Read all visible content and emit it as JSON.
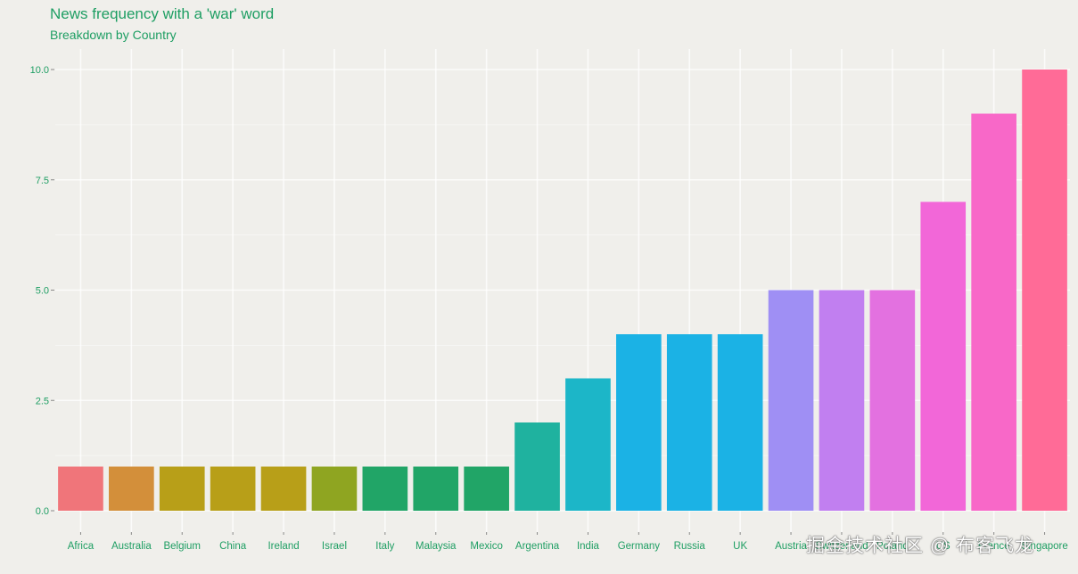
{
  "chart_data": {
    "type": "bar",
    "title": "News frequency with a 'war' word",
    "subtitle": "Breakdown by Country",
    "xlabel": "",
    "ylabel": "",
    "ylim": [
      0,
      10
    ],
    "yticks": [
      0,
      2.5,
      5,
      7.5,
      10
    ],
    "ytick_labels": [
      "0.0",
      "2.5",
      "5.0",
      "7.5",
      "10.0"
    ],
    "grid": true,
    "legend": "none",
    "categories": [
      "Africa",
      "Australia",
      "Belgium",
      "China",
      "Ireland",
      "Israel",
      "Italy",
      "Malaysia",
      "Mexico",
      "Argentina",
      "India",
      "Germany",
      "Russia",
      "UK",
      "Austria",
      "Switzerland",
      "Poland",
      "US",
      "France",
      "Singapore"
    ],
    "values": [
      1,
      1,
      1,
      1,
      1,
      1,
      1,
      1,
      1,
      2,
      3,
      4,
      4,
      4,
      5,
      5,
      5,
      7,
      9,
      10
    ],
    "colors": [
      "#f0757a",
      "#d38f3a",
      "#b89f18",
      "#b89f18",
      "#b89f18",
      "#8fa521",
      "#21a567",
      "#21a567",
      "#21a567",
      "#1fb29f",
      "#1cb6c8",
      "#1bb2e5",
      "#1bb2e5",
      "#1bb2e5",
      "#9f8ff4",
      "#c17ff0",
      "#e371e0",
      "#f267d8",
      "#f868c8",
      "#ff6b97"
    ]
  },
  "watermark": "掘金技术社区 @ 布客飞龙"
}
